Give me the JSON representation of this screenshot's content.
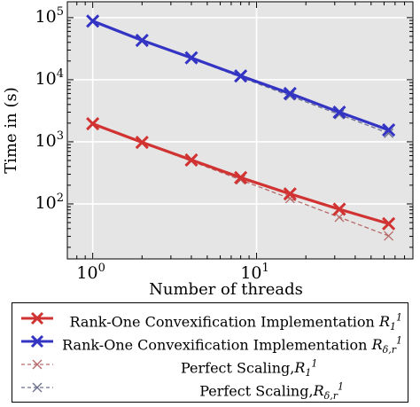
{
  "chart_data": {
    "type": "line",
    "xscale": "log",
    "yscale": "log",
    "xlabel": "Number of threads",
    "ylabel": "Time in (s)",
    "xlim": [
      0.7,
      90
    ],
    "ylim": [
      13,
      180000
    ],
    "grid": true,
    "legend_position": "below",
    "xticks": [
      {
        "base": "10",
        "exp": "0",
        "value": 1
      },
      {
        "base": "10",
        "exp": "1",
        "value": 10
      }
    ],
    "yticks": [
      {
        "base": "10",
        "exp": "2",
        "value": 100
      },
      {
        "base": "10",
        "exp": "3",
        "value": 1000
      },
      {
        "base": "10",
        "exp": "4",
        "value": 10000
      },
      {
        "base": "10",
        "exp": "5",
        "value": 100000
      }
    ],
    "x": [
      1,
      2,
      4,
      8,
      16,
      32,
      64
    ],
    "series": [
      {
        "name": "Rank-One Convexification Implementation",
        "math_base": "R",
        "math_sub": "1",
        "math_sup": "1",
        "color": "#d13232",
        "style": "solid",
        "marker": "x",
        "values": [
          1950,
          980,
          510,
          265,
          145,
          82,
          48
        ]
      },
      {
        "name": "Rank-One Convexification Implementation",
        "math_base": "R",
        "math_sub": "δ,r",
        "math_sup": "1",
        "color": "#3434c4",
        "style": "solid",
        "marker": "x",
        "values": [
          88000,
          43000,
          22500,
          11500,
          6000,
          3000,
          1550
        ]
      },
      {
        "name": "Perfect Scaling,",
        "math_base": "R",
        "math_sub": "1",
        "math_sup": "1",
        "color": "#b66a6a",
        "style": "dashed",
        "marker": "x",
        "values": [
          1950,
          975,
          488,
          244,
          122,
          61,
          30.5
        ]
      },
      {
        "name": "Perfect Scaling,",
        "math_base": "R",
        "math_sub": "δ,r",
        "math_sup": "1",
        "color": "#6a6f8e",
        "style": "dashed",
        "marker": "x",
        "values": [
          88000,
          44000,
          22000,
          11000,
          5500,
          2750,
          1375
        ]
      }
    ]
  }
}
